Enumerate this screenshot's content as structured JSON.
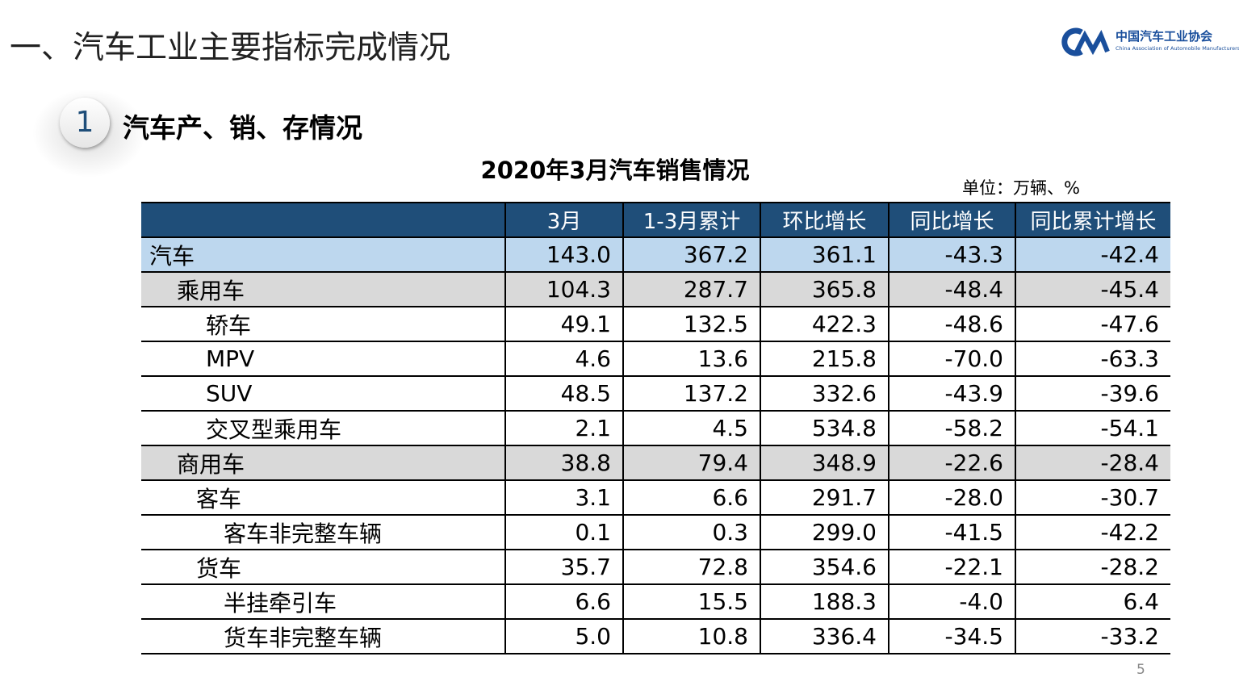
{
  "header": {
    "title": "一、汽车工业主要指标完成情况",
    "logo_cn": "中国汽车工业协会",
    "logo_en": "China Association of Automobile Manufacturers"
  },
  "section": {
    "number": "1",
    "title": "汽车产、销、存情况"
  },
  "table": {
    "title": "2020年3月汽车销售情况",
    "unit": "单位：万辆、%",
    "columns": [
      "",
      "3月",
      "1-3月累计",
      "环比增长",
      "同比增长",
      "同比累计增长"
    ],
    "rows": [
      [
        "汽车",
        "143.0",
        "367.2",
        "361.1",
        "-43.3",
        "-42.4"
      ],
      [
        "乘用车",
        "104.3",
        "287.7",
        "365.8",
        "-48.4",
        "-45.4"
      ],
      [
        "轿车",
        "49.1",
        "132.5",
        "422.3",
        "-48.6",
        "-47.6"
      ],
      [
        "MPV",
        "4.6",
        "13.6",
        "215.8",
        "-70.0",
        "-63.3"
      ],
      [
        "SUV",
        "48.5",
        "137.2",
        "332.6",
        "-43.9",
        "-39.6"
      ],
      [
        "交叉型乘用车",
        "2.1",
        "4.5",
        "534.8",
        "-58.2",
        "-54.1"
      ],
      [
        "商用车",
        "38.8",
        "79.4",
        "348.9",
        "-22.6",
        "-28.4"
      ],
      [
        "客车",
        "3.1",
        "6.6",
        "291.7",
        "-28.0",
        "-30.7"
      ],
      [
        "客车非完整车辆",
        "0.1",
        "0.3",
        "299.0",
        "-41.5",
        "-42.2"
      ],
      [
        "货车",
        "35.7",
        "72.8",
        "354.6",
        "-22.1",
        "-28.2"
      ],
      [
        "半挂牵引车",
        "6.6",
        "15.5",
        "188.3",
        "-4.0",
        "6.4"
      ],
      [
        "货车非完整车辆",
        "5.0",
        "10.8",
        "336.4",
        "-34.5",
        "-33.2"
      ]
    ]
  },
  "page_number": "5"
}
